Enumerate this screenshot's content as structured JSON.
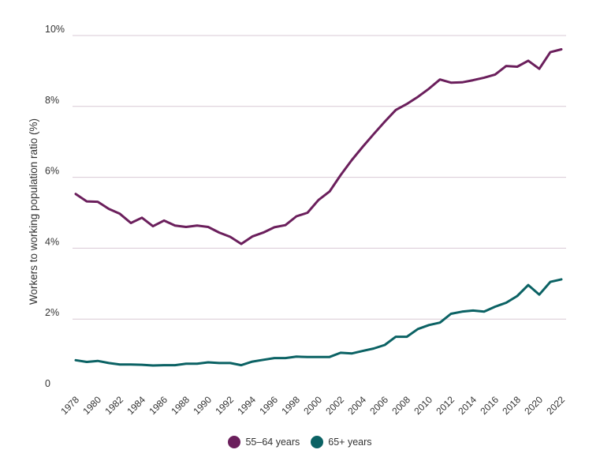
{
  "chart_data": {
    "type": "line",
    "ylabel": "Workers to working population ratio (%)",
    "xlabel": "",
    "ylim": [
      0,
      10
    ],
    "y_ticks": [
      {
        "value": 0,
        "label": "0"
      },
      {
        "value": 2,
        "label": "2%"
      },
      {
        "value": 4,
        "label": "4%"
      },
      {
        "value": 6,
        "label": "6%"
      },
      {
        "value": 8,
        "label": "8%"
      },
      {
        "value": 10,
        "label": "10%"
      }
    ],
    "x": [
      1978,
      1979,
      1980,
      1981,
      1982,
      1983,
      1984,
      1985,
      1986,
      1987,
      1988,
      1989,
      1990,
      1991,
      1992,
      1993,
      1994,
      1995,
      1996,
      1997,
      1998,
      1999,
      2000,
      2001,
      2002,
      2003,
      2004,
      2005,
      2006,
      2007,
      2008,
      2009,
      2010,
      2011,
      2012,
      2013,
      2014,
      2015,
      2016,
      2017,
      2018,
      2019,
      2020,
      2021,
      2022
    ],
    "x_ticks": [
      "1978",
      "1980",
      "1982",
      "1984",
      "1986",
      "1988",
      "1990",
      "1992",
      "1994",
      "1996",
      "1998",
      "2000",
      "2002",
      "2004",
      "2006",
      "2008",
      "2010",
      "2012",
      "2014",
      "2016",
      "2018",
      "2020",
      "2022"
    ],
    "grid": true,
    "legend_position": "bottom-center",
    "series": [
      {
        "name": "55–64 years",
        "color": "#6b1f5c",
        "values": [
          5.53,
          5.32,
          5.31,
          5.11,
          4.97,
          4.71,
          4.86,
          4.62,
          4.78,
          4.64,
          4.6,
          4.64,
          4.6,
          4.44,
          4.32,
          4.12,
          4.33,
          4.44,
          4.59,
          4.65,
          4.9,
          5.0,
          5.36,
          5.6,
          6.06,
          6.48,
          6.86,
          7.22,
          7.57,
          7.9,
          8.07,
          8.27,
          8.5,
          8.76,
          8.67,
          8.68,
          8.74,
          8.81,
          8.9,
          9.14,
          9.12,
          9.29,
          9.06,
          9.53,
          9.61
        ]
      },
      {
        "name": "65+ years",
        "color": "#0b6264",
        "values": [
          0.84,
          0.79,
          0.82,
          0.76,
          0.72,
          0.72,
          0.71,
          0.69,
          0.7,
          0.7,
          0.74,
          0.74,
          0.78,
          0.76,
          0.76,
          0.7,
          0.8,
          0.85,
          0.9,
          0.9,
          0.94,
          0.93,
          0.93,
          0.93,
          1.05,
          1.03,
          1.1,
          1.17,
          1.27,
          1.5,
          1.5,
          1.72,
          1.83,
          1.9,
          2.15,
          2.21,
          2.24,
          2.21,
          2.35,
          2.46,
          2.65,
          2.96,
          2.69,
          3.05,
          3.12
        ]
      }
    ]
  }
}
